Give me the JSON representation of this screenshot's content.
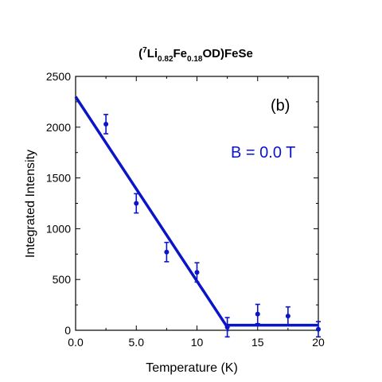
{
  "chart_data": {
    "type": "scatter",
    "title_parts": [
      "(",
      "7",
      "Li",
      "0.82",
      "Fe",
      "0.18",
      "OD)FeSe"
    ],
    "panel_label": "(b)",
    "annotation": "B = 0.0 T",
    "xlabel": "Temperature (K)",
    "ylabel": "Integrated Intensity",
    "xlim": [
      0,
      20
    ],
    "ylim": [
      0,
      2500
    ],
    "x_ticks": [
      0,
      5,
      10,
      15,
      20
    ],
    "x_tick_labels": [
      "0.0",
      "5.0",
      "10",
      "15",
      "20"
    ],
    "y_ticks": [
      0,
      500,
      1000,
      1500,
      2000,
      2500
    ],
    "y_tick_labels": [
      "0",
      "500",
      "1000",
      "1500",
      "2000",
      "2500"
    ],
    "color": "#0a14c8",
    "series": [
      {
        "marker": "circle",
        "x": [
          2.5,
          5.0,
          7.5,
          10.0,
          12.5,
          15.0,
          17.5,
          20.0
        ],
        "y": [
          2030,
          1250,
          770,
          570,
          30,
          160,
          140,
          10
        ],
        "err": [
          95,
          95,
          95,
          95,
          95,
          95,
          90,
          75
        ]
      },
      {
        "line": true,
        "x": [
          0,
          12.5,
          12.5,
          20
        ],
        "y": [
          2300,
          30,
          50,
          50
        ]
      }
    ]
  }
}
